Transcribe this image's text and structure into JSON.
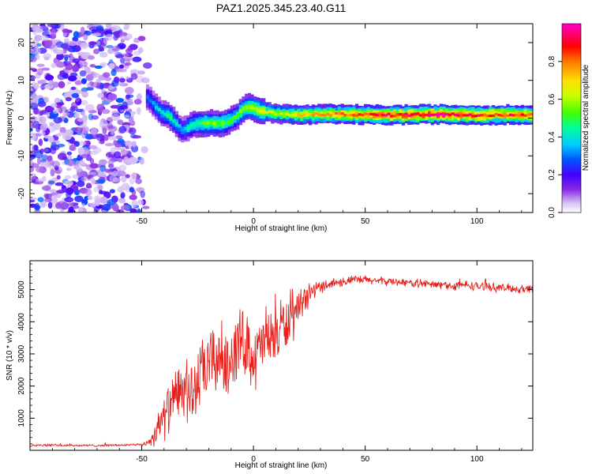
{
  "figure_title": "PAZ1.2025.345.23.40.G11",
  "chart_data": [
    {
      "type": "heatmap",
      "title": "PAZ1.2025.345.23.40.G11",
      "xlabel": "Height of straight line (km)",
      "ylabel": "Frequency (Hz)",
      "xlim": [
        -100,
        125
      ],
      "ylim": [
        -25,
        25
      ],
      "xticks": [
        -50,
        0,
        50,
        100
      ],
      "yticks": [
        -20,
        -10,
        0,
        10,
        20
      ],
      "xtick_labels": [
        "-50",
        "0",
        "50",
        "100"
      ],
      "ytick_labels": [
        "-20",
        "-10",
        "0",
        "10",
        "20"
      ],
      "colorbar": {
        "label": "Normalized spectral amplitude",
        "range": [
          0,
          1
        ],
        "ticks": [
          "0.0",
          "0.2",
          "0.4",
          "0.6",
          "0.8"
        ],
        "tick_values": [
          0.0,
          0.2,
          0.4,
          0.6,
          0.8
        ],
        "colormap": [
          "#ffffff",
          "#d6c2f5",
          "#8a2be2",
          "#4400ff",
          "#0055ff",
          "#00ccff",
          "#00ff99",
          "#44ff00",
          "#ccff00",
          "#ffdd00",
          "#ff7700",
          "#ff0000",
          "#ff0077",
          "#ff00cc"
        ]
      },
      "ridge": {
        "description": "frequency ridge of the signal",
        "x": [
          -48,
          -45,
          -42,
          -38,
          -35,
          -32,
          -29,
          -25,
          -20,
          -15,
          -12,
          -8,
          -5,
          -2,
          0,
          3,
          6,
          10,
          15,
          20,
          30,
          40,
          50,
          60,
          70,
          80,
          90,
          100,
          110,
          125
        ],
        "y": [
          5.5,
          3.5,
          1.5,
          0.5,
          -1.5,
          -3.5,
          -2.0,
          -1.5,
          -1.2,
          -1.5,
          -1.0,
          0.5,
          2.5,
          3.0,
          2.5,
          1.8,
          1.5,
          1.2,
          1.0,
          0.8,
          1.0,
          1.0,
          0.9,
          0.8,
          0.9,
          1.0,
          0.9,
          0.8,
          0.9,
          0.8
        ],
        "amplitude": [
          0.3,
          0.35,
          0.4,
          0.45,
          0.4,
          0.35,
          0.45,
          0.5,
          0.55,
          0.55,
          0.5,
          0.5,
          0.55,
          0.6,
          0.6,
          0.65,
          0.65,
          0.6,
          0.65,
          0.7,
          0.75,
          0.8,
          0.85,
          0.9,
          0.92,
          0.95,
          0.92,
          0.9,
          0.88,
          0.85
        ]
      },
      "noise_region": {
        "x_range": [
          -100,
          -47
        ],
        "y_range": [
          -25,
          25
        ],
        "amplitude_range": [
          0.05,
          0.3
        ]
      }
    },
    {
      "type": "line",
      "xlabel": "Height of straight line (km)",
      "ylabel": "SNR (10 * v/v)",
      "xlim": [
        -100,
        125
      ],
      "ylim": [
        0,
        5900
      ],
      "xticks": [
        -50,
        0,
        50,
        100
      ],
      "yticks": [
        1000,
        2000,
        3000,
        4000,
        5000
      ],
      "xtick_labels": [
        "-50",
        "0",
        "50",
        "100"
      ],
      "ytick_labels": [
        "1000",
        "2000",
        "3000",
        "4000",
        "5000"
      ],
      "color": "#e8201c",
      "series": [
        {
          "name": "SNR",
          "x": [
            -100,
            -90,
            -80,
            -70,
            -60,
            -50,
            -47,
            -45,
            -43,
            -40,
            -38,
            -35,
            -33,
            -30,
            -28,
            -25,
            -22,
            -20,
            -18,
            -15,
            -12,
            -10,
            -8,
            -5,
            -2,
            0,
            3,
            5,
            8,
            10,
            13,
            15,
            18,
            20,
            23,
            25,
            28,
            30,
            35,
            40,
            45,
            50,
            55,
            60,
            65,
            70,
            75,
            80,
            85,
            90,
            95,
            100,
            105,
            110,
            115,
            120,
            125
          ],
          "y": [
            150,
            160,
            150,
            150,
            160,
            170,
            250,
            400,
            700,
            1000,
            1300,
            1600,
            1800,
            1900,
            1700,
            2100,
            2500,
            2600,
            2800,
            2900,
            2700,
            3000,
            3200,
            3400,
            3300,
            2800,
            3100,
            3500,
            3400,
            3600,
            3900,
            3900,
            4100,
            4300,
            4600,
            4900,
            5000,
            5100,
            5200,
            5250,
            5300,
            5300,
            5280,
            5250,
            5250,
            5200,
            5200,
            5150,
            5150,
            5100,
            5150,
            5100,
            5100,
            5050,
            5050,
            5000,
            5050
          ],
          "jitter": [
            40,
            40,
            40,
            40,
            40,
            40,
            120,
            300,
            500,
            700,
            800,
            900,
            1000,
            1100,
            1100,
            1100,
            1100,
            1200,
            1200,
            1200,
            1200,
            1200,
            1200,
            1100,
            1100,
            1100,
            1100,
            1100,
            1100,
            1000,
            1000,
            900,
            700,
            600,
            500,
            350,
            250,
            200,
            180,
            160,
            150,
            150,
            140,
            130,
            130,
            130,
            140,
            140,
            140,
            150,
            150,
            150,
            140,
            140,
            140,
            140,
            140
          ]
        }
      ]
    }
  ]
}
